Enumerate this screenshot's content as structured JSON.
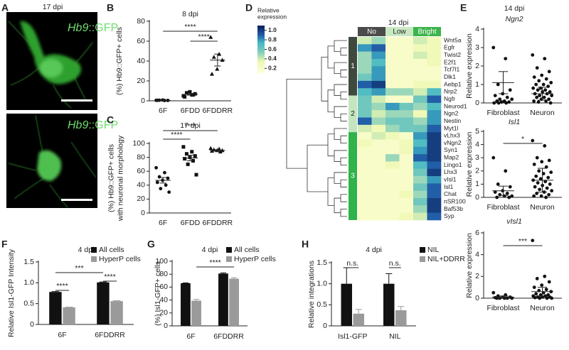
{
  "panel_labels": [
    "A",
    "B",
    "C",
    "D",
    "E",
    "F",
    "G",
    "H"
  ],
  "image_panel": {
    "title": "17 dpi",
    "labels": [
      {
        "gene": "Hb9",
        "suffix": "::GFP"
      },
      {
        "gene": "Hb9",
        "suffix": "::GFP"
      }
    ]
  },
  "chart_data": [
    {
      "type": "strip",
      "title": "8 dpi",
      "ylabel": [
        "(%) Hb9::GFP+ cells"
      ],
      "categories": [
        "6F",
        "6FDD",
        "6FDDRR"
      ],
      "markers": [
        "circle",
        "square",
        "triangle"
      ],
      "values": [
        [
          0.5,
          0.3,
          0.6,
          0.4,
          0.8,
          0.5
        ],
        [
          5,
          6,
          8,
          7,
          9,
          4,
          6
        ],
        [
          64,
          47,
          44,
          41,
          32,
          27
        ]
      ],
      "means": [
        0.5,
        6.5,
        41
      ],
      "sems": [
        0.2,
        0.8,
        6
      ],
      "ylim": [
        0,
        80
      ],
      "yticks": [
        0,
        20,
        40,
        60,
        80
      ],
      "significance": [
        {
          "label": "****",
          "a": "6F",
          "b": "6FDDRR"
        },
        {
          "label": "****",
          "a": "6FDD",
          "b": "6FDDRR"
        }
      ]
    },
    {
      "type": "strip",
      "title": "17 dpi",
      "ylabel": [
        "(%) Hb9::GFP+ cells",
        "with neuronal morphology"
      ],
      "categories": [
        "6F",
        "6FDD",
        "6FDDRR"
      ],
      "markers": [
        "circle",
        "square",
        "triangle"
      ],
      "values": [
        [
          65,
          58,
          52,
          50,
          47,
          44,
          40,
          35,
          30
        ],
        [
          95,
          88,
          85,
          82,
          80,
          78,
          75,
          70,
          55
        ],
        [
          93,
          92,
          91,
          90,
          90,
          89,
          88
        ]
      ],
      "means": [
        47,
        79,
        90
      ],
      "sems": [
        4,
        4,
        1
      ],
      "ylim": [
        0,
        100
      ],
      "yticks": [
        0,
        20,
        40,
        60,
        80,
        100
      ],
      "significance": [
        {
          "label": "****",
          "a": "6F",
          "b": "6FDD"
        },
        {
          "label": "****",
          "a": "6F",
          "b": "6FDDRR"
        }
      ]
    },
    {
      "type": "heatmap",
      "title": "14 dpi",
      "legend_title": [
        "Relative",
        "expression"
      ],
      "zlim": [
        0.1,
        1.1
      ],
      "zticks": [
        {
          "value": 1,
          "label": "1.0"
        },
        0.8,
        0.6,
        0.4,
        0.2
      ],
      "groups": [
        {
          "name": "No",
          "color": "#4b4b4b"
        },
        {
          "name": "Low",
          "color": "#c9e8c2"
        },
        {
          "name": "Bright",
          "color": "#3cb44b"
        }
      ],
      "clusters": [
        {
          "label": "1",
          "color": "#3e4a3e",
          "rows": [
            {
              "gene": "Wnt5a",
              "values": [
                0.4,
                0.5,
                0.2,
                0.2,
                0.4,
                0.3
              ]
            },
            {
              "gene": "Egfr",
              "values": [
                0.8,
                0.9,
                0.2,
                0.2,
                0.3,
                0.3
              ]
            },
            {
              "gene": "Twist2",
              "values": [
                0.5,
                0.8,
                0.2,
                0.2,
                0.4,
                0.3
              ]
            },
            {
              "gene": "E2f1",
              "values": [
                0.5,
                0.7,
                0.2,
                0.2,
                0.2,
                0.3
              ]
            },
            {
              "gene": "Tcf7l1",
              "values": [
                0.5,
                0.8,
                0.2,
                0.2,
                0.2,
                0.2
              ]
            },
            {
              "gene": "Dlk1",
              "values": [
                0.6,
                0.8,
                0.2,
                0.2,
                0.2,
                0.2
              ]
            },
            {
              "gene": "Aebp1",
              "values": [
                0.9,
                1.0,
                0.2,
                0.2,
                0.3,
                0.3
              ]
            },
            {
              "gene": "Nrp2",
              "values": [
                0.7,
                0.8,
                0.5,
                0.5,
                0.4,
                0.7
              ]
            }
          ]
        },
        {
          "label": "2",
          "color": "#c5e5c0",
          "rows": [
            {
              "gene": "Ngfr",
              "values": [
                0.6,
                0.4,
                0.2,
                0.2,
                0.6,
                0.9
              ]
            },
            {
              "gene": "Neurod1",
              "values": [
                0.6,
                0.5,
                0.8,
                0.6,
                0.5,
                0.7
              ]
            },
            {
              "gene": "Ngn2",
              "values": [
                0.6,
                0.4,
                0.5,
                0.5,
                0.3,
                0.8
              ]
            },
            {
              "gene": "Nestin",
              "values": [
                0.9,
                0.5,
                0.6,
                0.6,
                0.5,
                0.8
              ]
            },
            {
              "gene": "Myt1l",
              "values": [
                0.4,
                0.3,
                0.5,
                0.6,
                0.6,
                0.9
              ]
            }
          ]
        },
        {
          "label": "3",
          "color": "#2fb34a",
          "rows": [
            {
              "gene": "vLhx3",
              "values": [
                0.2,
                0.4,
                0.3,
                0.2,
                0.8,
                1.0
              ]
            },
            {
              "gene": "vNgn2",
              "values": [
                0.3,
                0.2,
                0.2,
                0.3,
                0.7,
                1.0
              ]
            },
            {
              "gene": "Syn1",
              "values": [
                0.2,
                0.2,
                0.2,
                0.3,
                0.8,
                1.0
              ]
            },
            {
              "gene": "Map2",
              "values": [
                0.2,
                0.2,
                0.5,
                0.2,
                0.9,
                1.0
              ]
            },
            {
              "gene": "Lingo1",
              "values": [
                0.2,
                0.2,
                0.3,
                0.2,
                0.7,
                0.9
              ]
            },
            {
              "gene": "Lhx3",
              "values": [
                0.2,
                0.2,
                0.2,
                0.2,
                0.6,
                1.0
              ]
            },
            {
              "gene": "vIsl1",
              "values": [
                0.2,
                0.2,
                0.2,
                0.2,
                0.5,
                0.8
              ]
            },
            {
              "gene": "Isl1",
              "values": [
                0.2,
                0.2,
                0.2,
                0.2,
                0.6,
                0.9
              ]
            },
            {
              "gene": "Chat",
              "values": [
                0.2,
                0.2,
                0.2,
                0.3,
                0.5,
                0.9
              ]
            },
            {
              "gene": "nSR100",
              "values": [
                0.2,
                0.2,
                0.2,
                0.2,
                0.6,
                1.0
              ]
            },
            {
              "gene": "Baf53b",
              "values": [
                0.2,
                0.2,
                0.2,
                0.2,
                0.5,
                1.0
              ]
            },
            {
              "gene": "Syp",
              "values": [
                0.2,
                0.2,
                0.2,
                0.3,
                0.4,
                0.9
              ]
            }
          ]
        }
      ]
    },
    {
      "type": "strip",
      "header": "14 dpi",
      "title": "Ngn2",
      "ylabel": [
        "Relative expression"
      ],
      "categories": [
        "Fibroblast",
        "Neuron"
      ],
      "markers": [
        "circle",
        "circle"
      ],
      "values": [
        [
          3.0,
          2.4,
          1.0,
          0.7,
          0.5,
          0.4,
          0.3,
          0.2,
          0.2,
          0.1,
          0.1,
          0.05,
          0.05,
          0,
          0,
          0
        ],
        [
          2.6,
          2.4,
          1.9,
          1.7,
          1.5,
          1.4,
          1.3,
          1.2,
          1.1,
          1.0,
          1.0,
          0.9,
          0.8,
          0.8,
          0.7,
          0.7,
          0.6,
          0.6,
          0.5,
          0.5,
          0.4,
          0.4,
          0.3,
          0.3,
          0.2,
          0.2,
          0.1,
          0.1,
          0.05,
          0
        ]
      ],
      "means": [
        1.1,
        0.5
      ],
      "sems": [
        0.6,
        0.35
      ],
      "ylim": [
        0,
        4
      ],
      "yticks": [
        0,
        1,
        2,
        3,
        4
      ],
      "significance": []
    },
    {
      "type": "strip",
      "title": "Isl1",
      "ylabel": [
        "Relative expression"
      ],
      "categories": [
        "Fibroblast",
        "Neuron"
      ],
      "markers": [
        "circle",
        "circle"
      ],
      "values": [
        [
          3.0,
          2.0,
          1.0,
          0.8,
          0.5,
          0.4,
          0.3,
          0.2,
          0.1,
          0.1,
          0,
          0
        ],
        [
          4.3,
          3.9,
          3.0,
          2.8,
          2.7,
          2.5,
          2.3,
          2.0,
          1.9,
          1.8,
          1.6,
          1.5,
          1.4,
          1.3,
          1.2,
          1.1,
          1.0,
          0.9,
          0.8,
          0.7,
          0.6,
          0.5,
          0.4,
          0.3,
          0.2,
          0.1,
          0.1,
          0
        ]
      ],
      "means": [
        0.5,
        1.3
      ],
      "sems": [
        0.35,
        0.9
      ],
      "ylim": [
        0,
        5
      ],
      "yticks": [
        0,
        1,
        2,
        3,
        4,
        5
      ],
      "significance": [
        {
          "label": "*",
          "a": "Fibroblast",
          "b": "Neuron"
        }
      ]
    },
    {
      "type": "strip",
      "title": "vIsl1",
      "ylabel": [
        "Relative expression"
      ],
      "categories": [
        "Fibroblast",
        "Neuron"
      ],
      "markers": [
        "circle",
        "circle"
      ],
      "values": [
        [
          0.5,
          0.3,
          0.2,
          0.1,
          0.1,
          0.05,
          0,
          0,
          0,
          0,
          0
        ],
        [
          5.3,
          2.0,
          1.8,
          1.5,
          1.2,
          1.0,
          0.8,
          0.7,
          0.6,
          0.5,
          0.4,
          0.3,
          0.3,
          0.2,
          0.2,
          0.1,
          0.1,
          0.1,
          0.05,
          0,
          0,
          0
        ]
      ],
      "means": [
        0.1,
        0.6
      ],
      "sems": [
        0.1,
        0.4
      ],
      "ylim": [
        0,
        6
      ],
      "yticks": [
        0,
        2,
        4,
        6
      ],
      "significance": [
        {
          "label": "***",
          "a": "Fibroblast",
          "b": "Neuron"
        }
      ]
    },
    {
      "type": "bar",
      "title": "4 dpi",
      "ylabel": [
        "Relative Isl1-GFP Intensity"
      ],
      "categories": [
        "6F",
        "6FDDRR"
      ],
      "series": [
        {
          "name": "All cells",
          "color": "#111111",
          "values": [
            0.78,
            1.01
          ],
          "errors": [
            0.01,
            0.01
          ]
        },
        {
          "name": "HyperP cells",
          "color": "#9a9a9a",
          "values": [
            0.41,
            0.56
          ],
          "errors": [
            0.005,
            0.01
          ]
        }
      ],
      "ylim": [
        0,
        1.5
      ],
      "yticks": [
        0,
        0.5,
        {
          "value": 1,
          "label": "1.0"
        },
        1.5
      ],
      "significance": [
        {
          "label": "****",
          "a": [
            "6F",
            "All cells"
          ],
          "b": [
            "6F",
            "HyperP cells"
          ]
        },
        {
          "label": "****",
          "a": [
            "6FDDRR",
            "All cells"
          ],
          "b": [
            "6FDDRR",
            "HyperP cells"
          ]
        },
        {
          "label": "***",
          "a": [
            "6F",
            "All cells"
          ],
          "b": [
            "6FDDRR",
            "All cells"
          ]
        }
      ]
    },
    {
      "type": "bar",
      "title": "4 dpi",
      "ylabel": [
        "(%) Isl1-GFP+ cells"
      ],
      "categories": [
        "6F",
        "6FDDRR"
      ],
      "series": [
        {
          "name": "All cells",
          "color": "#111111",
          "values": [
            66,
            81
          ],
          "errors": [
            0.5,
            1
          ]
        },
        {
          "name": "HyperP cells",
          "color": "#9a9a9a",
          "values": [
            39,
            73
          ],
          "errors": [
            2,
            1.5
          ]
        }
      ],
      "ylim": [
        0,
        100
      ],
      "yticks": [
        0,
        20,
        40,
        60,
        80,
        100
      ],
      "significance": [
        {
          "label": "****",
          "a": [
            "6F",
            "HyperP cells"
          ],
          "b": [
            "6FDDRR",
            "HyperP cells"
          ]
        }
      ]
    },
    {
      "type": "bar",
      "title": "4 dpi",
      "ylabel": [
        "Relative integrations"
      ],
      "categories": [
        "Isl1-GFP",
        "NIL"
      ],
      "series": [
        {
          "name": "NIL",
          "color": "#111111",
          "values": [
            1.0,
            1.0
          ],
          "errors": [
            0.38,
            0.24
          ]
        },
        {
          "name": "NIL+DDRR",
          "color": "#9a9a9a",
          "values": [
            0.29,
            0.37
          ],
          "errors": [
            0.1,
            0.09
          ]
        }
      ],
      "ylim": [
        0,
        1.5
      ],
      "yticks": [
        0,
        0.5,
        {
          "value": 1,
          "label": "1.0"
        },
        1.5
      ],
      "significance": [
        {
          "label": "n.s.",
          "a": [
            "Isl1-GFP",
            "NIL"
          ],
          "b": [
            "Isl1-GFP",
            "NIL+DDRR"
          ]
        },
        {
          "label": "n.s.",
          "a": [
            "NIL",
            "NIL"
          ],
          "b": [
            "NIL",
            "NIL+DDRR"
          ]
        }
      ]
    }
  ]
}
